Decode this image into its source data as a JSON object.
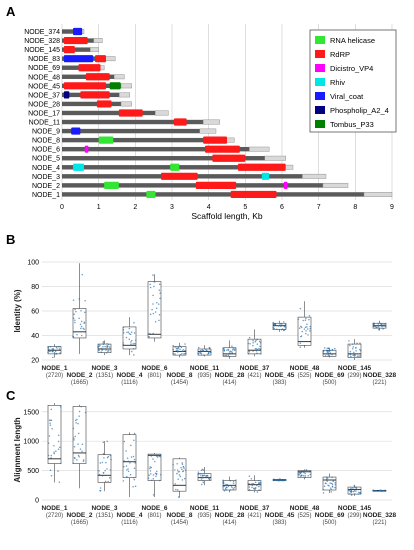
{
  "panels": {
    "a": "A",
    "b": "B",
    "c": "C"
  },
  "chart_data": [
    {
      "type": "genome-map",
      "xlabel": "Scaffold length, Kb",
      "xlim": [
        0,
        9
      ],
      "xticks": [
        0,
        1,
        2,
        3,
        4,
        5,
        6,
        7,
        8,
        9
      ],
      "nodes": [
        {
          "name": "NODE_374",
          "length": 0.6,
          "domains": [
            {
              "type": "Viral_coat",
              "start": 0.3,
              "end": 0.55
            }
          ]
        },
        {
          "name": "NODE_328",
          "length": 1.1,
          "domains": [
            {
              "type": "RdRP",
              "start": 0.05,
              "end": 0.7
            }
          ]
        },
        {
          "name": "NODE_145",
          "length": 1.0,
          "domains": [
            {
              "type": "RdRP",
              "start": 0.05,
              "end": 0.35
            }
          ]
        },
        {
          "name": "NODE_83",
          "length": 1.45,
          "domains": [
            {
              "type": "Viral_coat",
              "start": 0.05,
              "end": 0.85
            },
            {
              "type": "RdRP",
              "start": 0.9,
              "end": 1.2
            }
          ]
        },
        {
          "name": "NODE_69",
          "length": 1.15,
          "domains": [
            {
              "type": "RdRP",
              "start": 0.45,
              "end": 1.05
            }
          ]
        },
        {
          "name": "NODE_48",
          "length": 1.7,
          "domains": [
            {
              "type": "RdRP",
              "start": 0.65,
              "end": 1.3
            }
          ]
        },
        {
          "name": "NODE_45",
          "length": 1.9,
          "domains": [
            {
              "type": "RdRP",
              "start": 0.05,
              "end": 1.2
            },
            {
              "type": "Tombus_P33",
              "start": 1.3,
              "end": 1.6
            }
          ]
        },
        {
          "name": "NODE_37",
          "length": 1.85,
          "domains": [
            {
              "type": "Phospholip_A2_4",
              "start": 0.05,
              "end": 0.2
            },
            {
              "type": "RdRP",
              "start": 0.5,
              "end": 1.3
            }
          ]
        },
        {
          "name": "NODE_28",
          "length": 1.9,
          "domains": [
            {
              "type": "RdRP",
              "start": 0.95,
              "end": 1.35
            }
          ]
        },
        {
          "name": "NODE_17",
          "length": 2.9,
          "domains": [
            {
              "type": "RdRP",
              "start": 1.55,
              "end": 2.2
            }
          ]
        },
        {
          "name": "NODE_11",
          "length": 4.3,
          "domains": [
            {
              "type": "RdRP",
              "start": 3.05,
              "end": 3.4
            }
          ]
        },
        {
          "name": "NODE_9",
          "length": 4.2,
          "domains": [
            {
              "type": "Viral_coat",
              "start": 0.25,
              "end": 0.5
            }
          ]
        },
        {
          "name": "NODE_8",
          "length": 4.7,
          "domains": [
            {
              "type": "RNA_helicase",
              "start": 1.0,
              "end": 1.4
            },
            {
              "type": "RdRP",
              "start": 3.85,
              "end": 4.5
            }
          ]
        },
        {
          "name": "NODE_6",
          "length": 5.65,
          "domains": [
            {
              "type": "Dicistro_VP4",
              "start": 0.62,
              "end": 0.72
            },
            {
              "type": "RdRP",
              "start": 3.9,
              "end": 4.85
            }
          ]
        },
        {
          "name": "NODE_5",
          "length": 6.1,
          "domains": [
            {
              "type": "RdRP",
              "start": 4.1,
              "end": 5.0
            }
          ]
        },
        {
          "name": "NODE_4",
          "length": 6.3,
          "domains": [
            {
              "type": "Rhiv",
              "start": 0.3,
              "end": 0.6
            },
            {
              "type": "RNA_helicase",
              "start": 2.95,
              "end": 3.2
            },
            {
              "type": "RdRP",
              "start": 4.8,
              "end": 6.1
            }
          ]
        },
        {
          "name": "NODE_3",
          "length": 7.2,
          "domains": [
            {
              "type": "RdRP",
              "start": 2.7,
              "end": 3.7
            },
            {
              "type": "Rhiv",
              "start": 5.45,
              "end": 5.65
            }
          ]
        },
        {
          "name": "NODE_2",
          "length": 7.8,
          "domains": [
            {
              "type": "RNA_helicase",
              "start": 1.15,
              "end": 1.55
            },
            {
              "type": "RdRP",
              "start": 3.65,
              "end": 4.75
            },
            {
              "type": "Dicistro_VP4",
              "start": 6.05,
              "end": 6.15
            }
          ]
        },
        {
          "name": "NODE_1",
          "length": 9.0,
          "domains": [
            {
              "type": "RNA_helicase",
              "start": 2.3,
              "end": 2.55
            },
            {
              "type": "RdRP",
              "start": 4.6,
              "end": 5.85
            }
          ]
        }
      ],
      "legend": [
        {
          "key": "RNA_helicase",
          "label": "RNA helicase",
          "color": "#33e633"
        },
        {
          "key": "RdRP",
          "label": "RdRP",
          "color": "#ff1a1a"
        },
        {
          "key": "Dicistro_VP4",
          "label": "Dicistro_VP4",
          "color": "#ff00ff"
        },
        {
          "key": "Rhiv",
          "label": "Rhiv",
          "color": "#00e6e6"
        },
        {
          "key": "Viral_coat",
          "label": "Viral_coat",
          "color": "#1a1aff"
        },
        {
          "key": "Phospholip_A2_4",
          "label": "Phospholip_A2_4",
          "color": "#000080"
        },
        {
          "key": "Tombus_P33",
          "label": "Tombus_P33",
          "color": "#008000"
        }
      ],
      "legend_placement": "top-right",
      "grid": true
    },
    {
      "type": "boxplot",
      "ylabel": "Identity (%)",
      "ylim": [
        20,
        100
      ],
      "yticks": [
        20,
        40,
        60,
        80,
        100
      ],
      "categories": [
        "NODE_1",
        "NODE_2",
        "NODE_3",
        "NODE_4",
        "NODE_6",
        "NODE_8",
        "NODE_11",
        "NODE_28",
        "NODE_37",
        "NODE_45",
        "NODE_48",
        "NODE_69",
        "NODE_145",
        "NODE_328"
      ],
      "counts": [
        "(2720)",
        "(1665)",
        "(1351)",
        "(1116)",
        "(801)",
        "(1454)",
        "(935)",
        "(414)",
        "(421)",
        "(383)",
        "(525)",
        "(500)",
        "(299)",
        "(221)"
      ],
      "boxes": [
        {
          "whisker_low": 22,
          "q1": 25,
          "median": 28,
          "q3": 31,
          "whisker_high": 33
        },
        {
          "whisker_low": 25,
          "q1": 38,
          "median": 43,
          "q3": 62,
          "whisker_high": 99
        },
        {
          "whisker_low": 24,
          "q1": 26,
          "median": 29,
          "q3": 33,
          "whisker_high": 36
        },
        {
          "whisker_low": 24,
          "q1": 29,
          "median": 32,
          "q3": 47,
          "whisker_high": 55
        },
        {
          "whisker_low": 35,
          "q1": 38,
          "median": 41,
          "q3": 84,
          "whisker_high": 90
        },
        {
          "whisker_low": 22,
          "q1": 24,
          "median": 27,
          "q3": 31,
          "whisker_high": 34
        },
        {
          "whisker_low": 23,
          "q1": 24,
          "median": 27,
          "q3": 29,
          "whisker_high": 32
        },
        {
          "whisker_low": 21,
          "q1": 23,
          "median": 25,
          "q3": 30,
          "whisker_high": 36
        },
        {
          "whisker_low": 23,
          "q1": 25,
          "median": 28,
          "q3": 37,
          "whisker_high": 45
        },
        {
          "whisker_low": 43,
          "q1": 45,
          "median": 48,
          "q3": 50,
          "whisker_high": 52
        },
        {
          "whisker_low": 30,
          "q1": 32,
          "median": 35,
          "q3": 55,
          "whisker_high": 68
        },
        {
          "whisker_low": 22,
          "q1": 23,
          "median": 25,
          "q3": 28,
          "whisker_high": 30
        },
        {
          "whisker_low": 20,
          "q1": 22,
          "median": 25,
          "q3": 33,
          "whisker_high": 37
        },
        {
          "whisker_low": 44,
          "q1": 46,
          "median": 48,
          "q3": 50,
          "whisker_high": 52
        }
      ]
    },
    {
      "type": "boxplot",
      "ylabel": "Alignment length",
      "ylim": [
        0,
        1700
      ],
      "yticks": [
        0,
        500,
        1000,
        1500
      ],
      "categories": [
        "NODE_1",
        "NODE_2",
        "NODE_3",
        "NODE_4",
        "NODE_6",
        "NODE_8",
        "NODE_11",
        "NODE_28",
        "NODE_37",
        "NODE_45",
        "NODE_48",
        "NODE_69",
        "NODE_145",
        "NODE_328"
      ],
      "counts": [
        "(2720)",
        "(1665)",
        "(1351)",
        "(1116)",
        "(801)",
        "(1454)",
        "(935)",
        "(414)",
        "(421)",
        "(383)",
        "(525)",
        "(500)",
        "(299)",
        "(221)"
      ],
      "boxes": [
        {
          "whisker_low": 300,
          "q1": 620,
          "median": 700,
          "q3": 1610,
          "whisker_high": 1650
        },
        {
          "whisker_low": 200,
          "q1": 620,
          "median": 800,
          "q3": 1590,
          "whisker_high": 1620
        },
        {
          "whisker_low": 150,
          "q1": 300,
          "median": 420,
          "q3": 770,
          "whisker_high": 1000
        },
        {
          "whisker_low": 50,
          "q1": 380,
          "median": 650,
          "q3": 1110,
          "whisker_high": 1150
        },
        {
          "whisker_low": 50,
          "q1": 330,
          "median": 760,
          "q3": 780,
          "whisker_high": 800
        },
        {
          "whisker_low": 40,
          "q1": 150,
          "median": 250,
          "q3": 700,
          "whisker_high": 720
        },
        {
          "whisker_low": 250,
          "q1": 330,
          "median": 380,
          "q3": 450,
          "whisker_high": 560
        },
        {
          "whisker_low": 130,
          "q1": 170,
          "median": 250,
          "q3": 330,
          "whisker_high": 400
        },
        {
          "whisker_low": 130,
          "q1": 160,
          "median": 260,
          "q3": 330,
          "whisker_high": 420
        },
        {
          "whisker_low": 320,
          "q1": 330,
          "median": 340,
          "q3": 350,
          "whisker_high": 360
        },
        {
          "whisker_low": 350,
          "q1": 380,
          "median": 480,
          "q3": 500,
          "whisker_high": 520
        },
        {
          "whisker_low": 120,
          "q1": 170,
          "median": 340,
          "q3": 390,
          "whisker_high": 450
        },
        {
          "whisker_low": 70,
          "q1": 100,
          "median": 180,
          "q3": 220,
          "whisker_high": 250
        },
        {
          "whisker_low": 150,
          "q1": 155,
          "median": 160,
          "q3": 165,
          "whisker_high": 170
        }
      ]
    }
  ]
}
